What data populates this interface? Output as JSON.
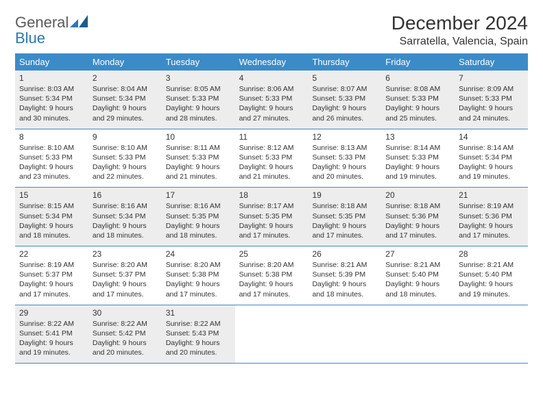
{
  "logo": {
    "word1": "General",
    "word2": "Blue"
  },
  "title": "December 2024",
  "location": "Sarratella, Valencia, Spain",
  "colors": {
    "header_bg": "#3b8bc9",
    "header_text": "#ffffff",
    "shaded_bg": "#ededed",
    "border": "#3b8bc9",
    "logo_gray": "#5a5a5a",
    "logo_blue": "#2a78b8"
  },
  "weekdays": [
    "Sunday",
    "Monday",
    "Tuesday",
    "Wednesday",
    "Thursday",
    "Friday",
    "Saturday"
  ],
  "weeks": [
    {
      "shaded": true,
      "days": [
        {
          "num": "1",
          "sunrise": "Sunrise: 8:03 AM",
          "sunset": "Sunset: 5:34 PM",
          "day1": "Daylight: 9 hours",
          "day2": "and 30 minutes."
        },
        {
          "num": "2",
          "sunrise": "Sunrise: 8:04 AM",
          "sunset": "Sunset: 5:34 PM",
          "day1": "Daylight: 9 hours",
          "day2": "and 29 minutes."
        },
        {
          "num": "3",
          "sunrise": "Sunrise: 8:05 AM",
          "sunset": "Sunset: 5:33 PM",
          "day1": "Daylight: 9 hours",
          "day2": "and 28 minutes."
        },
        {
          "num": "4",
          "sunrise": "Sunrise: 8:06 AM",
          "sunset": "Sunset: 5:33 PM",
          "day1": "Daylight: 9 hours",
          "day2": "and 27 minutes."
        },
        {
          "num": "5",
          "sunrise": "Sunrise: 8:07 AM",
          "sunset": "Sunset: 5:33 PM",
          "day1": "Daylight: 9 hours",
          "day2": "and 26 minutes."
        },
        {
          "num": "6",
          "sunrise": "Sunrise: 8:08 AM",
          "sunset": "Sunset: 5:33 PM",
          "day1": "Daylight: 9 hours",
          "day2": "and 25 minutes."
        },
        {
          "num": "7",
          "sunrise": "Sunrise: 8:09 AM",
          "sunset": "Sunset: 5:33 PM",
          "day1": "Daylight: 9 hours",
          "day2": "and 24 minutes."
        }
      ]
    },
    {
      "shaded": false,
      "days": [
        {
          "num": "8",
          "sunrise": "Sunrise: 8:10 AM",
          "sunset": "Sunset: 5:33 PM",
          "day1": "Daylight: 9 hours",
          "day2": "and 23 minutes."
        },
        {
          "num": "9",
          "sunrise": "Sunrise: 8:10 AM",
          "sunset": "Sunset: 5:33 PM",
          "day1": "Daylight: 9 hours",
          "day2": "and 22 minutes."
        },
        {
          "num": "10",
          "sunrise": "Sunrise: 8:11 AM",
          "sunset": "Sunset: 5:33 PM",
          "day1": "Daylight: 9 hours",
          "day2": "and 21 minutes."
        },
        {
          "num": "11",
          "sunrise": "Sunrise: 8:12 AM",
          "sunset": "Sunset: 5:33 PM",
          "day1": "Daylight: 9 hours",
          "day2": "and 21 minutes."
        },
        {
          "num": "12",
          "sunrise": "Sunrise: 8:13 AM",
          "sunset": "Sunset: 5:33 PM",
          "day1": "Daylight: 9 hours",
          "day2": "and 20 minutes."
        },
        {
          "num": "13",
          "sunrise": "Sunrise: 8:14 AM",
          "sunset": "Sunset: 5:33 PM",
          "day1": "Daylight: 9 hours",
          "day2": "and 19 minutes."
        },
        {
          "num": "14",
          "sunrise": "Sunrise: 8:14 AM",
          "sunset": "Sunset: 5:34 PM",
          "day1": "Daylight: 9 hours",
          "day2": "and 19 minutes."
        }
      ]
    },
    {
      "shaded": true,
      "days": [
        {
          "num": "15",
          "sunrise": "Sunrise: 8:15 AM",
          "sunset": "Sunset: 5:34 PM",
          "day1": "Daylight: 9 hours",
          "day2": "and 18 minutes."
        },
        {
          "num": "16",
          "sunrise": "Sunrise: 8:16 AM",
          "sunset": "Sunset: 5:34 PM",
          "day1": "Daylight: 9 hours",
          "day2": "and 18 minutes."
        },
        {
          "num": "17",
          "sunrise": "Sunrise: 8:16 AM",
          "sunset": "Sunset: 5:35 PM",
          "day1": "Daylight: 9 hours",
          "day2": "and 18 minutes."
        },
        {
          "num": "18",
          "sunrise": "Sunrise: 8:17 AM",
          "sunset": "Sunset: 5:35 PM",
          "day1": "Daylight: 9 hours",
          "day2": "and 17 minutes."
        },
        {
          "num": "19",
          "sunrise": "Sunrise: 8:18 AM",
          "sunset": "Sunset: 5:35 PM",
          "day1": "Daylight: 9 hours",
          "day2": "and 17 minutes."
        },
        {
          "num": "20",
          "sunrise": "Sunrise: 8:18 AM",
          "sunset": "Sunset: 5:36 PM",
          "day1": "Daylight: 9 hours",
          "day2": "and 17 minutes."
        },
        {
          "num": "21",
          "sunrise": "Sunrise: 8:19 AM",
          "sunset": "Sunset: 5:36 PM",
          "day1": "Daylight: 9 hours",
          "day2": "and 17 minutes."
        }
      ]
    },
    {
      "shaded": false,
      "days": [
        {
          "num": "22",
          "sunrise": "Sunrise: 8:19 AM",
          "sunset": "Sunset: 5:37 PM",
          "day1": "Daylight: 9 hours",
          "day2": "and 17 minutes."
        },
        {
          "num": "23",
          "sunrise": "Sunrise: 8:20 AM",
          "sunset": "Sunset: 5:37 PM",
          "day1": "Daylight: 9 hours",
          "day2": "and 17 minutes."
        },
        {
          "num": "24",
          "sunrise": "Sunrise: 8:20 AM",
          "sunset": "Sunset: 5:38 PM",
          "day1": "Daylight: 9 hours",
          "day2": "and 17 minutes."
        },
        {
          "num": "25",
          "sunrise": "Sunrise: 8:20 AM",
          "sunset": "Sunset: 5:38 PM",
          "day1": "Daylight: 9 hours",
          "day2": "and 17 minutes."
        },
        {
          "num": "26",
          "sunrise": "Sunrise: 8:21 AM",
          "sunset": "Sunset: 5:39 PM",
          "day1": "Daylight: 9 hours",
          "day2": "and 18 minutes."
        },
        {
          "num": "27",
          "sunrise": "Sunrise: 8:21 AM",
          "sunset": "Sunset: 5:40 PM",
          "day1": "Daylight: 9 hours",
          "day2": "and 18 minutes."
        },
        {
          "num": "28",
          "sunrise": "Sunrise: 8:21 AM",
          "sunset": "Sunset: 5:40 PM",
          "day1": "Daylight: 9 hours",
          "day2": "and 19 minutes."
        }
      ]
    },
    {
      "shaded": true,
      "days": [
        {
          "num": "29",
          "sunrise": "Sunrise: 8:22 AM",
          "sunset": "Sunset: 5:41 PM",
          "day1": "Daylight: 9 hours",
          "day2": "and 19 minutes."
        },
        {
          "num": "30",
          "sunrise": "Sunrise: 8:22 AM",
          "sunset": "Sunset: 5:42 PM",
          "day1": "Daylight: 9 hours",
          "day2": "and 20 minutes."
        },
        {
          "num": "31",
          "sunrise": "Sunrise: 8:22 AM",
          "sunset": "Sunset: 5:43 PM",
          "day1": "Daylight: 9 hours",
          "day2": "and 20 minutes."
        },
        {
          "num": "",
          "sunrise": "",
          "sunset": "",
          "day1": "",
          "day2": ""
        },
        {
          "num": "",
          "sunrise": "",
          "sunset": "",
          "day1": "",
          "day2": ""
        },
        {
          "num": "",
          "sunrise": "",
          "sunset": "",
          "day1": "",
          "day2": ""
        },
        {
          "num": "",
          "sunrise": "",
          "sunset": "",
          "day1": "",
          "day2": ""
        }
      ]
    }
  ]
}
